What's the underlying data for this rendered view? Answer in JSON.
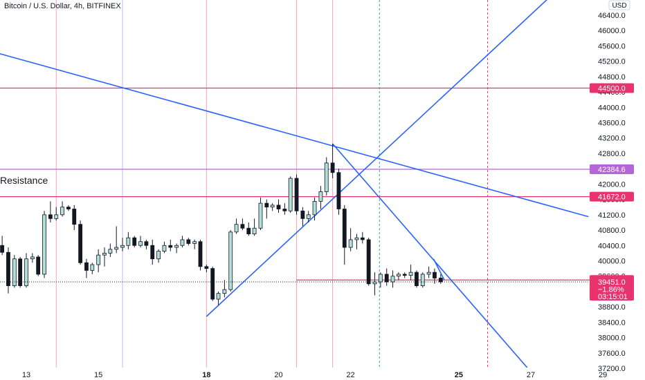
{
  "chart_data": {
    "type": "candlestick",
    "title": "Bitcoin / U.S. Dollar, 4h, BITFINEX",
    "currency": "USD",
    "annotation": "Resistance",
    "ylim": [
      36800,
      46900
    ],
    "y_ticks": [
      "46400.0",
      "46000.0",
      "45600.0",
      "45200.0",
      "44800.0",
      "44400.0",
      "44000.0",
      "43600.0",
      "43200.0",
      "42800.0",
      "42400.0",
      "42000.0",
      "41600.0",
      "41200.0",
      "40800.0",
      "40400.0",
      "40000.0",
      "39600.0",
      "39200.0",
      "38800.0",
      "38400.0",
      "38000.0",
      "37600.0",
      "37200.0"
    ],
    "x_labels": [
      {
        "label": "13",
        "day": 13.0,
        "bold": false
      },
      {
        "label": "15",
        "day": 15.0,
        "bold": false
      },
      {
        "label": "18",
        "day": 18.0,
        "bold": true
      },
      {
        "label": "20",
        "day": 20.0,
        "bold": false
      },
      {
        "label": "22",
        "day": 22.0,
        "bold": false
      },
      {
        "label": "25",
        "day": 25.0,
        "bold": true
      },
      {
        "label": "27",
        "day": 27.0,
        "bold": false
      },
      {
        "label": "29",
        "day": 29.0,
        "bold": false
      }
    ],
    "candles": [
      {
        "t": 12.33,
        "o": 40400,
        "h": 40650,
        "l": 40150,
        "c": 40220
      },
      {
        "t": 12.5,
        "o": 40220,
        "h": 40350,
        "l": 39150,
        "c": 39350
      },
      {
        "t": 12.67,
        "o": 39350,
        "h": 40150,
        "l": 39300,
        "c": 40050
      },
      {
        "t": 12.83,
        "o": 40050,
        "h": 40100,
        "l": 39300,
        "c": 39350
      },
      {
        "t": 13.0,
        "o": 39350,
        "h": 40200,
        "l": 39300,
        "c": 40050
      },
      {
        "t": 13.17,
        "o": 40050,
        "h": 40200,
        "l": 39950,
        "c": 40100
      },
      {
        "t": 13.33,
        "o": 40100,
        "h": 40150,
        "l": 39600,
        "c": 39650
      },
      {
        "t": 13.5,
        "o": 39650,
        "h": 41300,
        "l": 39550,
        "c": 41200
      },
      {
        "t": 13.67,
        "o": 41200,
        "h": 41550,
        "l": 41000,
        "c": 41100
      },
      {
        "t": 13.83,
        "o": 41100,
        "h": 41400,
        "l": 41050,
        "c": 41200
      },
      {
        "t": 14.0,
        "o": 41200,
        "h": 41550,
        "l": 41150,
        "c": 41400
      },
      {
        "t": 14.17,
        "o": 41400,
        "h": 41450,
        "l": 41300,
        "c": 41350
      },
      {
        "t": 14.33,
        "o": 41350,
        "h": 41450,
        "l": 40800,
        "c": 40950
      },
      {
        "t": 14.5,
        "o": 40950,
        "h": 41050,
        "l": 39900,
        "c": 39950
      },
      {
        "t": 14.67,
        "o": 39950,
        "h": 40050,
        "l": 39550,
        "c": 39750
      },
      {
        "t": 14.83,
        "o": 39750,
        "h": 39950,
        "l": 39650,
        "c": 39900
      },
      {
        "t": 15.0,
        "o": 39900,
        "h": 40300,
        "l": 39700,
        "c": 40150
      },
      {
        "t": 15.17,
        "o": 40150,
        "h": 40350,
        "l": 39850,
        "c": 40200
      },
      {
        "t": 15.33,
        "o": 40200,
        "h": 40450,
        "l": 40100,
        "c": 40300
      },
      {
        "t": 15.5,
        "o": 40300,
        "h": 40900,
        "l": 40200,
        "c": 40350
      },
      {
        "t": 15.67,
        "o": 40350,
        "h": 40600,
        "l": 40250,
        "c": 40400
      },
      {
        "t": 15.83,
        "o": 40400,
        "h": 40750,
        "l": 40300,
        "c": 40600
      },
      {
        "t": 16.0,
        "o": 40600,
        "h": 40650,
        "l": 40350,
        "c": 40400
      },
      {
        "t": 16.17,
        "o": 40400,
        "h": 40650,
        "l": 40350,
        "c": 40500
      },
      {
        "t": 16.33,
        "o": 40500,
        "h": 40550,
        "l": 40300,
        "c": 40400
      },
      {
        "t": 16.5,
        "o": 40400,
        "h": 40550,
        "l": 39900,
        "c": 40050
      },
      {
        "t": 16.67,
        "o": 40050,
        "h": 40300,
        "l": 39950,
        "c": 40250
      },
      {
        "t": 16.83,
        "o": 40250,
        "h": 40500,
        "l": 40200,
        "c": 40400
      },
      {
        "t": 17.0,
        "o": 40400,
        "h": 40550,
        "l": 40250,
        "c": 40350
      },
      {
        "t": 17.17,
        "o": 40350,
        "h": 40450,
        "l": 40200,
        "c": 40400
      },
      {
        "t": 17.33,
        "o": 40400,
        "h": 40650,
        "l": 40350,
        "c": 40550
      },
      {
        "t": 17.5,
        "o": 40550,
        "h": 40600,
        "l": 40400,
        "c": 40450
      },
      {
        "t": 17.67,
        "o": 40450,
        "h": 40550,
        "l": 40300,
        "c": 40500
      },
      {
        "t": 17.83,
        "o": 40500,
        "h": 40550,
        "l": 39750,
        "c": 39850
      },
      {
        "t": 18.0,
        "o": 39850,
        "h": 39900,
        "l": 39700,
        "c": 39800
      },
      {
        "t": 18.17,
        "o": 39800,
        "h": 39850,
        "l": 38950,
        "c": 39000
      },
      {
        "t": 18.33,
        "o": 39000,
        "h": 39200,
        "l": 38850,
        "c": 39150
      },
      {
        "t": 18.5,
        "o": 39150,
        "h": 39500,
        "l": 39050,
        "c": 39250
      },
      {
        "t": 18.67,
        "o": 39250,
        "h": 40800,
        "l": 39200,
        "c": 40750
      },
      {
        "t": 18.83,
        "o": 40750,
        "h": 41100,
        "l": 40700,
        "c": 40950
      },
      {
        "t": 19.0,
        "o": 40950,
        "h": 41100,
        "l": 40800,
        "c": 40850
      },
      {
        "t": 19.17,
        "o": 40850,
        "h": 41000,
        "l": 40650,
        "c": 40700
      },
      {
        "t": 19.33,
        "o": 40700,
        "h": 41100,
        "l": 40650,
        "c": 40850
      },
      {
        "t": 19.5,
        "o": 40850,
        "h": 41650,
        "l": 40800,
        "c": 41500
      },
      {
        "t": 19.67,
        "o": 41500,
        "h": 41600,
        "l": 41100,
        "c": 41400
      },
      {
        "t": 19.83,
        "o": 41400,
        "h": 41500,
        "l": 41300,
        "c": 41450
      },
      {
        "t": 20.0,
        "o": 41450,
        "h": 41600,
        "l": 41250,
        "c": 41350
      },
      {
        "t": 20.17,
        "o": 41350,
        "h": 41500,
        "l": 41200,
        "c": 41300
      },
      {
        "t": 20.33,
        "o": 41300,
        "h": 42200,
        "l": 41250,
        "c": 42150
      },
      {
        "t": 20.5,
        "o": 42150,
        "h": 42250,
        "l": 41200,
        "c": 41300
      },
      {
        "t": 20.67,
        "o": 41300,
        "h": 41400,
        "l": 40900,
        "c": 41100
      },
      {
        "t": 20.83,
        "o": 41100,
        "h": 41300,
        "l": 41000,
        "c": 41200
      },
      {
        "t": 21.0,
        "o": 41200,
        "h": 41650,
        "l": 41050,
        "c": 41550
      },
      {
        "t": 21.17,
        "o": 41550,
        "h": 41950,
        "l": 41350,
        "c": 41800
      },
      {
        "t": 21.33,
        "o": 41800,
        "h": 42700,
        "l": 41700,
        "c": 42550
      },
      {
        "t": 21.5,
        "o": 42550,
        "h": 43050,
        "l": 42150,
        "c": 42300
      },
      {
        "t": 21.67,
        "o": 42300,
        "h": 42400,
        "l": 41200,
        "c": 41350
      },
      {
        "t": 21.83,
        "o": 41350,
        "h": 41450,
        "l": 39900,
        "c": 40350
      },
      {
        "t": 22.0,
        "o": 40350,
        "h": 40850,
        "l": 40250,
        "c": 40550
      },
      {
        "t": 22.17,
        "o": 40550,
        "h": 40700,
        "l": 40300,
        "c": 40600
      },
      {
        "t": 22.33,
        "o": 40600,
        "h": 40750,
        "l": 40450,
        "c": 40550
      },
      {
        "t": 22.5,
        "o": 40550,
        "h": 40600,
        "l": 39350,
        "c": 39400
      },
      {
        "t": 22.67,
        "o": 39400,
        "h": 39700,
        "l": 39100,
        "c": 39450
      },
      {
        "t": 22.83,
        "o": 39450,
        "h": 39700,
        "l": 39300,
        "c": 39650
      },
      {
        "t": 23.0,
        "o": 39650,
        "h": 39800,
        "l": 39350,
        "c": 39450
      },
      {
        "t": 23.17,
        "o": 39450,
        "h": 39750,
        "l": 39300,
        "c": 39600
      },
      {
        "t": 23.33,
        "o": 39600,
        "h": 39700,
        "l": 39500,
        "c": 39650
      },
      {
        "t": 23.5,
        "o": 39650,
        "h": 39700,
        "l": 39550,
        "c": 39620
      },
      {
        "t": 23.67,
        "o": 39620,
        "h": 39900,
        "l": 39500,
        "c": 39700
      },
      {
        "t": 23.83,
        "o": 39700,
        "h": 39750,
        "l": 39300,
        "c": 39350
      },
      {
        "t": 24.0,
        "o": 39350,
        "h": 39700,
        "l": 39300,
        "c": 39650
      },
      {
        "t": 24.17,
        "o": 39650,
        "h": 39850,
        "l": 39550,
        "c": 39700
      },
      {
        "t": 24.33,
        "o": 39700,
        "h": 39800,
        "l": 39400,
        "c": 39550
      },
      {
        "t": 24.5,
        "o": 39550,
        "h": 39650,
        "l": 39400,
        "c": 39451
      }
    ],
    "vlines": [
      {
        "day": 13.83,
        "color": "#f4a6b8",
        "dash": ""
      },
      {
        "day": 15.67,
        "color": "#c3b3f5",
        "dash": ""
      },
      {
        "day": 18.0,
        "color": "#f4a6b8",
        "dash": ""
      },
      {
        "day": 20.5,
        "color": "#f4a6b8",
        "dash": ""
      },
      {
        "day": 21.5,
        "color": "#f4a6b8",
        "dash": ""
      },
      {
        "day": 22.8,
        "color": "#2a9fb0",
        "dash": "3,3"
      },
      {
        "day": 25.8,
        "color": "#e83a5e",
        "dash": "3,3"
      }
    ],
    "hlines": [
      {
        "price": 44500.0,
        "color": "#e8336f",
        "tag": "44500.0",
        "x_from_day": null
      },
      {
        "price": 42384.6,
        "color": "#b665d8",
        "tag": "42384.6",
        "x_from_day": null
      },
      {
        "price": 41672.0,
        "color": "#e8336f",
        "tag": "41672.0",
        "x_from_day": null
      },
      {
        "price": 39500.0,
        "color": "#e8336f",
        "tag": "39500.0",
        "x_from_day": 20.5
      }
    ],
    "trendlines": [
      {
        "from": [
          12.25,
          45400
        ],
        "to": [
          28.6,
          41150
        ]
      },
      {
        "from": [
          18.0,
          38550
        ],
        "to": [
          27.9,
          47200
        ]
      },
      {
        "from": [
          21.5,
          43050
        ],
        "to": [
          27.1,
          37000
        ]
      },
      {
        "from": [
          24.3,
          40050
        ],
        "to": [
          24.6,
          39500
        ]
      }
    ],
    "last_price": {
      "price": 39451.0,
      "value": "39451.0",
      "change": "−1.86%",
      "countdown": "03:15:01"
    },
    "colors": {
      "up_body": "#b2dfdb",
      "down_body": "#131722",
      "wick": "#131722",
      "trend": "#2962ff",
      "axis_text": "#131722",
      "tag_red": "#e8336f",
      "tag_purple": "#b665d8"
    }
  }
}
